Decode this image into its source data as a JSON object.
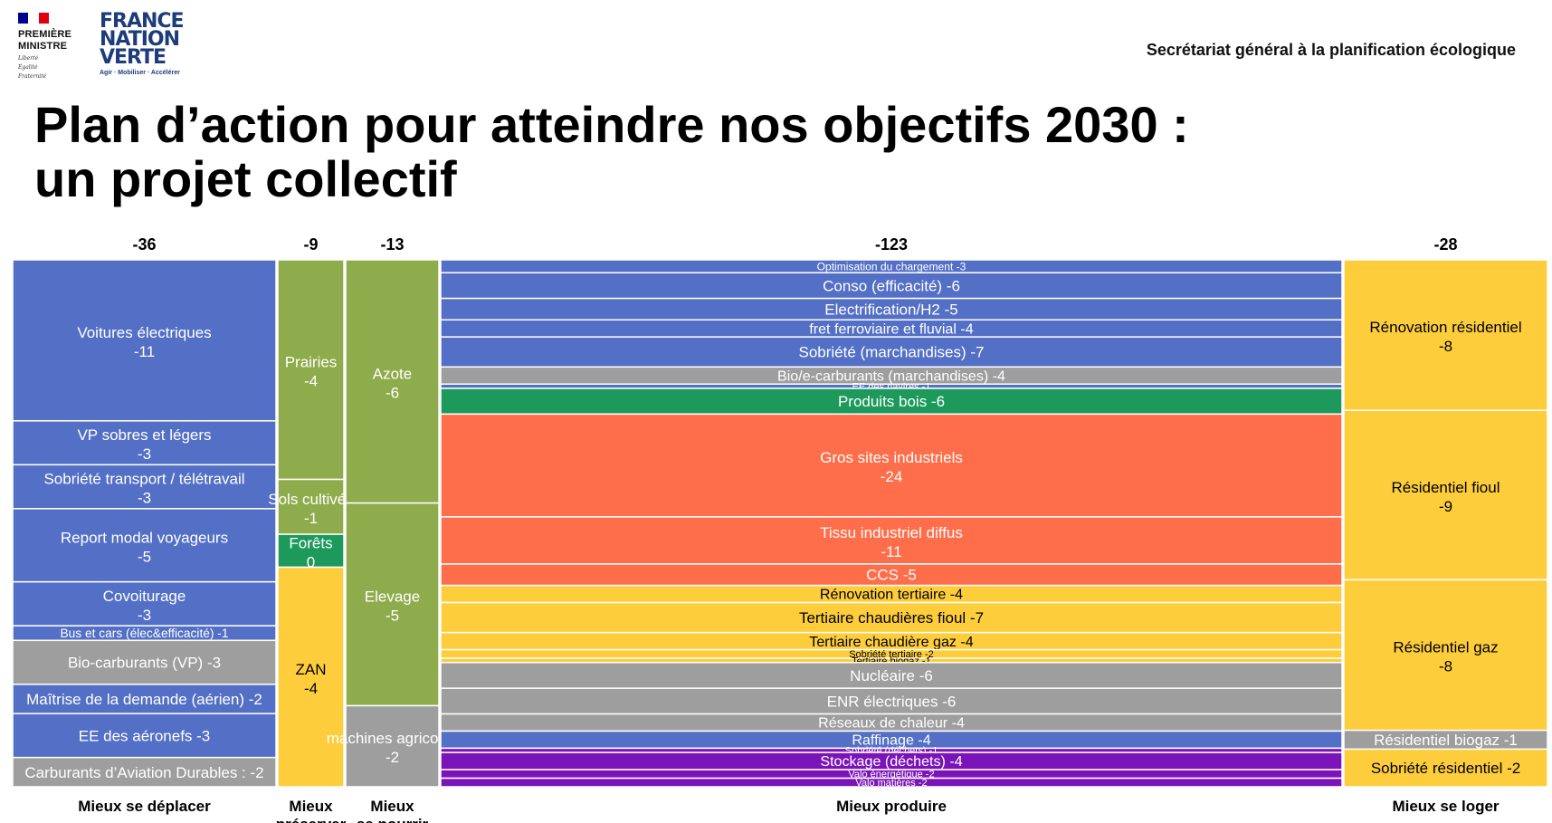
{
  "header": {
    "flag_colors": [
      "#000091",
      "#ffffff",
      "#e1000f"
    ],
    "rf_lines": [
      "PREMIÈRE",
      "MINISTRE"
    ],
    "rf_motto": [
      "Liberté",
      "Égalité",
      "Fraternité"
    ],
    "fnv_lines": [
      "FRANCE",
      "NATION",
      "VERTE"
    ],
    "fnv_tagline": "Agir · Mobiliser · Accélérer",
    "org": "Secrétariat général à la planification écologique"
  },
  "title": {
    "line1": "Plan d’action pour atteindre nos objectifs 2030 :",
    "line2": "un projet collectif"
  },
  "colors": {
    "blue": "#5470c6",
    "green": "#8fac4c",
    "dkgreen": "#1d9a5b",
    "orange": "#ff6e4a",
    "yellow": "#fdcd3b",
    "grey": "#9e9e9e",
    "purple": "#7b14b8"
  },
  "chart_data": {
    "type": "marimekko",
    "units": "",
    "groups": [
      {
        "name": "Mieux se déplacer",
        "total": "-36",
        "columns": [
          [
            {
              "label": "Voitures électriques",
              "value": -11,
              "color": "blue",
              "layout": "two"
            },
            {
              "label": "VP sobres et légers",
              "value": -3,
              "color": "blue",
              "layout": "two"
            },
            {
              "label": "Sobriété transport / télétravail",
              "value": -3,
              "color": "blue",
              "layout": "two"
            },
            {
              "label": "Report modal voyageurs",
              "value": -5,
              "color": "blue",
              "layout": "two"
            },
            {
              "label": "Covoiturage",
              "value": -3,
              "color": "blue",
              "layout": "two"
            },
            {
              "label": "Bus et cars (élec&efficacité)",
              "value": -1,
              "color": "blue"
            },
            {
              "label": "Bio-carburants (VP)",
              "value": -3,
              "color": "grey"
            },
            {
              "label": "Maîtrise de la demande (aérien)",
              "value": -2,
              "color": "blue"
            },
            {
              "label": "EE des aéronefs",
              "value": -3,
              "color": "blue"
            },
            {
              "label": "Carburants d’Aviation Durables :",
              "value": -2,
              "color": "grey"
            }
          ]
        ]
      },
      {
        "name": "Mieux préserver",
        "total": "-9",
        "columns": [
          [
            {
              "label": "Prairies",
              "value": -4,
              "color": "green",
              "layout": "two"
            },
            {
              "label": "Sols cultivés",
              "value": -1,
              "color": "green",
              "layout": "two"
            },
            {
              "label": "Forêts",
              "value": 0,
              "color": "dkgreen",
              "layout": "two"
            },
            {
              "label": "ZAN",
              "value": -4,
              "color": "yellow",
              "layout": "two"
            }
          ]
        ]
      },
      {
        "name": "Mieux se nourrir",
        "total": "-13",
        "columns": [
          [
            {
              "label": "Azote",
              "value": -6,
              "color": "green",
              "layout": "two"
            },
            {
              "label": "Elevage",
              "value": -5,
              "color": "green",
              "layout": "two"
            },
            {
              "label": "machines agricoles",
              "value": -2,
              "color": "grey",
              "layout": "two"
            }
          ]
        ]
      },
      {
        "name": "Mieux produire",
        "total": "-123",
        "columns": [
          [
            {
              "label": "Optimisation du chargement",
              "value": -3,
              "color": "blue"
            },
            {
              "label": "Conso (efficacité)",
              "value": -6,
              "color": "blue"
            },
            {
              "label": "Electrification/H2",
              "value": -5,
              "color": "blue"
            },
            {
              "label": "fret ferroviaire et fluvial",
              "value": -4,
              "color": "blue"
            },
            {
              "label": "Sobriété (marchandises)",
              "value": -7,
              "color": "blue"
            },
            {
              "label": "Bio/e-carburants (marchandises)",
              "value": -4,
              "color": "grey"
            },
            {
              "label": "EE des navires",
              "value": -1,
              "color": "blue"
            },
            {
              "label": "Produits bois",
              "value": -6,
              "color": "dkgreen"
            },
            {
              "label": "Gros sites industriels",
              "value": -24,
              "color": "orange",
              "layout": "two"
            },
            {
              "label": "Tissu industriel diffus",
              "value": -11,
              "color": "orange",
              "layout": "two"
            },
            {
              "label": "CCS",
              "value": -5,
              "color": "orange"
            },
            {
              "label": "Rénovation tertiaire",
              "value": -4,
              "color": "yellow"
            },
            {
              "label": "Tertiaire chaudières fioul",
              "value": -7,
              "color": "yellow"
            },
            {
              "label": "Tertiaire chaudière gaz",
              "value": -4,
              "color": "yellow"
            },
            {
              "label": "Sobriété tertiaire",
              "value": -2,
              "color": "yellow"
            },
            {
              "label": "Tertiaire biogaz",
              "value": -1,
              "color": "yellow"
            },
            {
              "label": "Nucléaire",
              "value": -6,
              "color": "grey"
            },
            {
              "label": "ENR électriques",
              "value": -6,
              "color": "grey"
            },
            {
              "label": "Réseaux de chaleur",
              "value": -4,
              "color": "grey"
            },
            {
              "label": "Raffinage",
              "value": -4,
              "color": "blue"
            },
            {
              "label": "Sobriété (déchets)",
              "value": -1,
              "color": "purple"
            },
            {
              "label": "Stockage (déchets)",
              "value": -4,
              "color": "purple"
            },
            {
              "label": "Valo énergétique",
              "value": -2,
              "color": "purple",
              "layout": "two"
            },
            {
              "label": "Valo matières",
              "value": -2,
              "color": "purple"
            }
          ]
        ]
      },
      {
        "name": "Mieux se loger",
        "total": "-28",
        "columns": [
          [
            {
              "label": "Rénovation résidentiel",
              "value": -8,
              "color": "yellow",
              "layout": "two"
            },
            {
              "label": "Résidentiel fioul",
              "value": -9,
              "color": "yellow",
              "layout": "two"
            },
            {
              "label": "Résidentiel gaz",
              "value": -8,
              "color": "yellow",
              "layout": "two"
            },
            {
              "label": "Résidentiel biogaz",
              "value": -1,
              "color": "grey"
            },
            {
              "label": "Sobriété résidentiel",
              "value": -2,
              "color": "yellow"
            }
          ]
        ]
      }
    ],
    "category_labels": [
      [
        "Mieux se déplacer"
      ],
      [
        "Mieux",
        "préserver"
      ],
      [
        "Mieux",
        "se nourrir"
      ],
      [
        "Mieux produire"
      ],
      [
        "Mieux se loger"
      ]
    ]
  }
}
